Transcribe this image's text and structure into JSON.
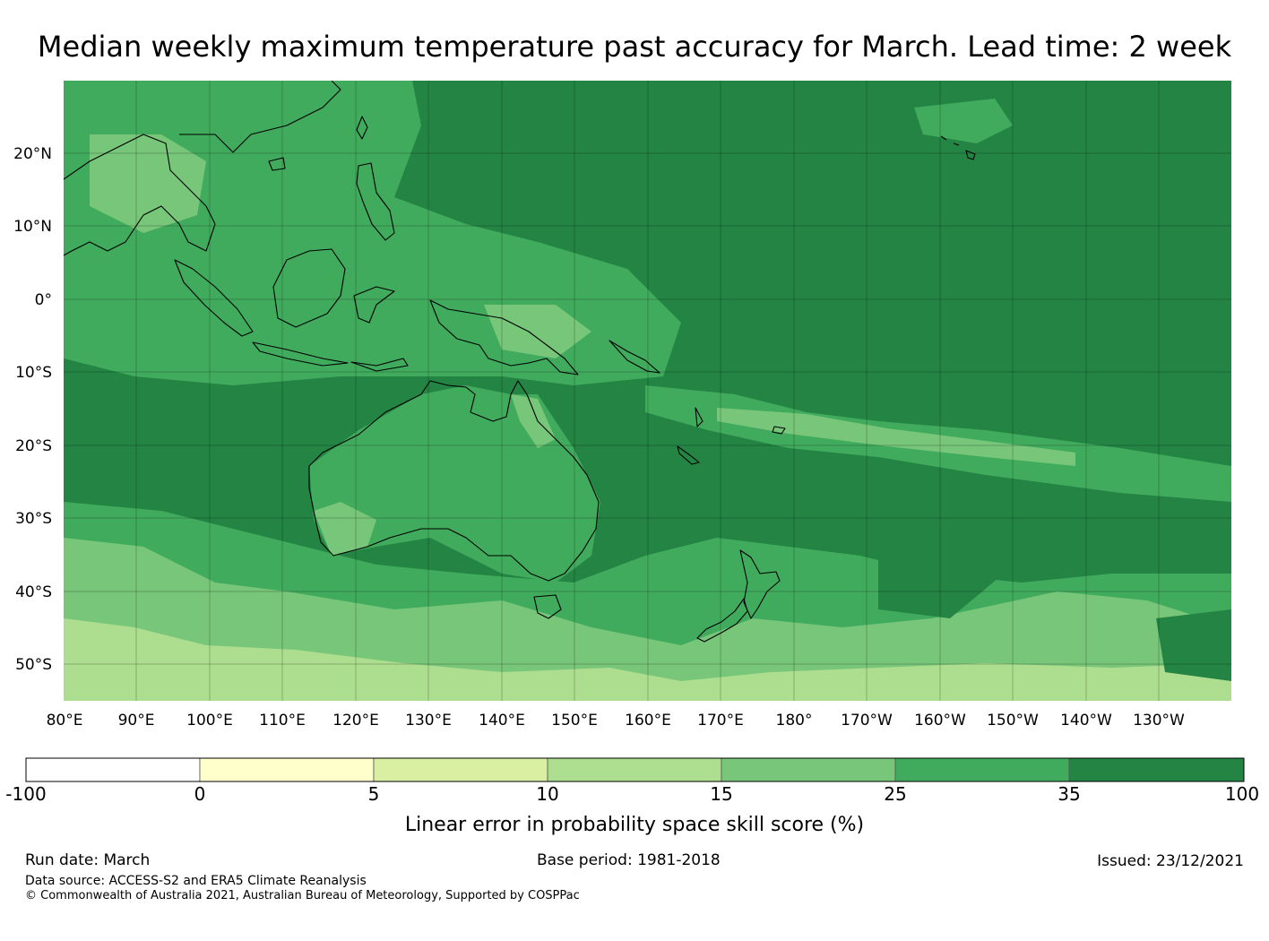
{
  "title": "Median weekly maximum temperature past accuracy for March. Lead time: 2 week",
  "map": {
    "lat_ticks": [
      "20°N",
      "10°N",
      "0°",
      "10°S",
      "20°S",
      "30°S",
      "40°S",
      "50°S"
    ],
    "lon_ticks": [
      "80°E",
      "90°E",
      "100°E",
      "110°E",
      "120°E",
      "130°E",
      "140°E",
      "150°E",
      "160°E",
      "170°E",
      "180°",
      "170°W",
      "160°W",
      "150°W",
      "140°W",
      "130°W"
    ],
    "land_names": [
      "Australia",
      "New Guinea",
      "Borneo",
      "Sumatra",
      "New Zealand North Island",
      "New Zealand South Island",
      "Tasmania",
      "Indochina"
    ]
  },
  "legend": {
    "label": "Linear error in probability space skill score (%)",
    "ticks": [
      "-100",
      "0",
      "5",
      "10",
      "15",
      "25",
      "35",
      "100"
    ],
    "colors": [
      "#ffffff",
      "#ffffcc",
      "#d9f0a3",
      "#addd8e",
      "#78c679",
      "#41ab5d",
      "#238443"
    ]
  },
  "footer": {
    "run_date": "Run date: March",
    "base_period": "Base period: 1981-2018",
    "issued": "Issued: 23/12/2021",
    "data_source": "Data source: ACCESS-S2 and ERA5 Climate Reanalysis",
    "copyright": "© Commonwealth of Australia 2021, Australian Bureau of Meteorology, Supported by COSPPac"
  }
}
